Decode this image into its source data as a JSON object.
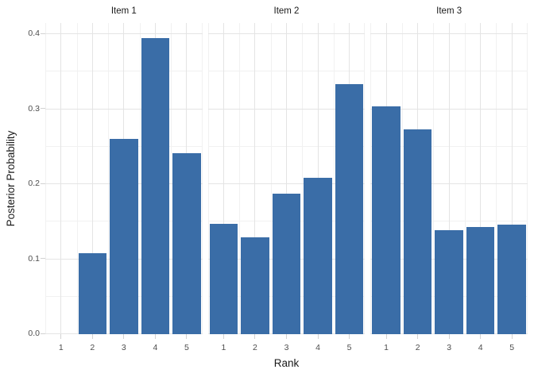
{
  "chart_data": {
    "type": "bar",
    "title": "",
    "xlabel": "Rank",
    "ylabel": "Posterior Probability",
    "categories": [
      1,
      2,
      3,
      4,
      5
    ],
    "x_tick_labels": [
      "1",
      "2",
      "3",
      "4",
      "5"
    ],
    "y_tick_labels": [
      "0.0",
      "0.1",
      "0.2",
      "0.3",
      "0.4"
    ],
    "y_tick_values": [
      0,
      0.1,
      0.2,
      0.3,
      0.4
    ],
    "ylim": [
      0,
      0.414
    ],
    "facets": [
      {
        "label": "Item 1",
        "values": [
          0,
          0.107,
          0.259,
          0.394,
          0.24
        ]
      },
      {
        "label": "Item 2",
        "values": [
          0.146,
          0.128,
          0.186,
          0.208,
          0.332
        ]
      },
      {
        "label": "Item 3",
        "values": [
          0.303,
          0.272,
          0.138,
          0.142,
          0.145
        ]
      }
    ],
    "grid": {
      "h_major_step": 0.1,
      "h_minor_step": 0.05,
      "v_major_at_x_ticks": true,
      "v_minor_between_ticks": true
    },
    "legend": "none",
    "colors": {
      "bar": "#3A6DA7",
      "grid_major": "#E4E4E4",
      "grid_minor": "#F1F1F1",
      "axis_tick": "#D2D2D2",
      "tick_label_text": "#4D4D4D",
      "title_text": "#1A1A1A",
      "background": "#FFFFFF"
    }
  }
}
